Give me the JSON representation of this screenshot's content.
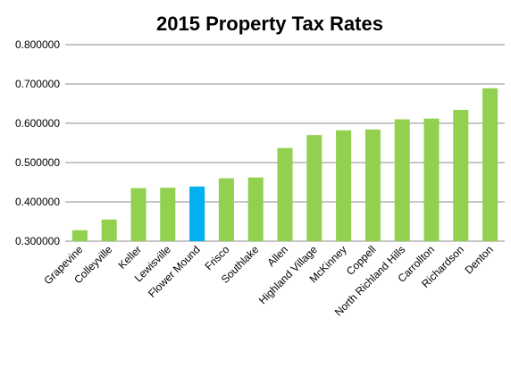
{
  "chart_data": {
    "type": "bar",
    "title": "2015 Property Tax Rates",
    "xlabel": "",
    "ylabel": "",
    "ylim": [
      0.3,
      0.8
    ],
    "yticks": [
      "0.300000",
      "0.400000",
      "0.500000",
      "0.600000",
      "0.700000",
      "0.800000"
    ],
    "ytick_values": [
      0.3,
      0.4,
      0.5,
      0.6,
      0.7,
      0.8
    ],
    "grid": true,
    "legend": "none",
    "categories": [
      "Grapevine",
      "Colleyville",
      "Keller",
      "Lewisville",
      "Flower Mound",
      "Frisco",
      "Southlake",
      "Allen",
      "Highland Village",
      "McKinney",
      "Coppell",
      "North Richland Hills",
      "Carrollton",
      "Richardson",
      "Denton"
    ],
    "values": [
      0.328,
      0.355,
      0.435,
      0.436,
      0.439,
      0.46,
      0.462,
      0.537,
      0.57,
      0.582,
      0.584,
      0.61,
      0.612,
      0.634,
      0.689
    ],
    "highlight_category": "Flower Mound",
    "colors": {
      "bar": "#92d050",
      "highlight": "#00b0f0"
    }
  }
}
